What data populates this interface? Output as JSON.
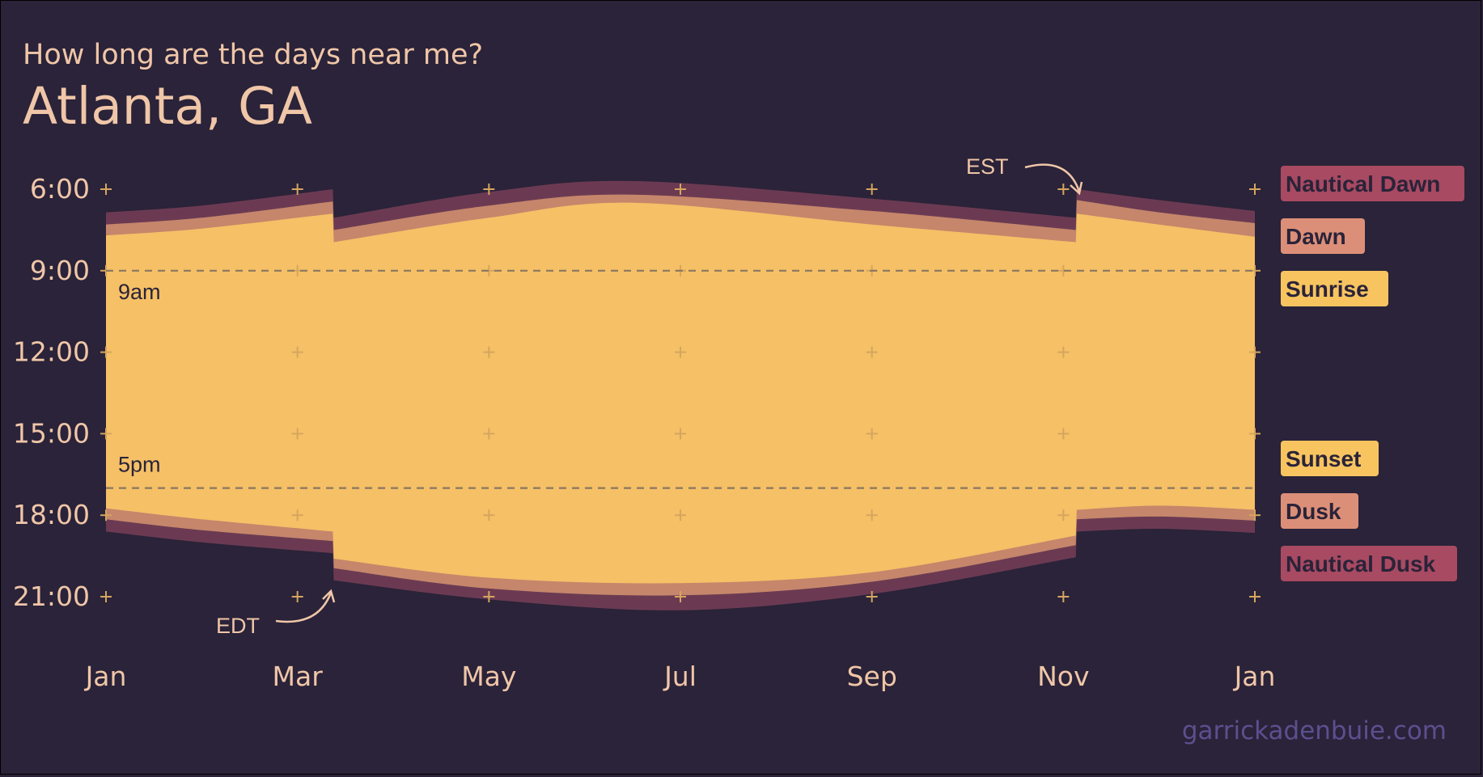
{
  "header": {
    "subtitle": "How long are the days near me?",
    "title": "Atlanta, GA"
  },
  "credit": "garrickadenbuie.com",
  "colors": {
    "background": "#2a2339",
    "nautical": "#6b3a52",
    "civil": "#c5866b",
    "day": "#f5c066",
    "text": "#f0c6a8",
    "credit": "#5c4f8f",
    "legend_nautical": "#a84a62",
    "legend_civil": "#dc8f78",
    "legend_day": "#f7c460"
  },
  "chart_data": {
    "type": "area",
    "x_ticks": [
      {
        "label": "Jan",
        "month": 1
      },
      {
        "label": "Mar",
        "month": 3
      },
      {
        "label": "May",
        "month": 5
      },
      {
        "label": "Jul",
        "month": 7
      },
      {
        "label": "Sep",
        "month": 9
      },
      {
        "label": "Nov",
        "month": 11
      },
      {
        "label": "Jan",
        "month": 13
      }
    ],
    "y_ticks": [
      "6:00",
      "9:00",
      "12:00",
      "15:00",
      "18:00",
      "21:00"
    ],
    "y_tick_hours": [
      6,
      9,
      12,
      15,
      18,
      21
    ],
    "ylim": [
      6,
      21
    ],
    "y_reversed": true,
    "reference_lines": [
      {
        "hour": 9,
        "label": "9am"
      },
      {
        "hour": 17,
        "label": "5pm"
      }
    ],
    "annotations": [
      {
        "label": "EST",
        "month": 11.1
      },
      {
        "label": "EDT",
        "month": 3.4
      }
    ],
    "dst_start_month": 3.37,
    "dst_end_month": 11.13,
    "series": [
      {
        "name": "Nautical Dawn",
        "month": [
          1,
          2,
          3.37,
          3.38,
          5,
          6.5,
          9,
          11.13,
          11.14,
          12,
          13
        ],
        "hour": [
          6.85,
          6.6,
          6.0,
          7.05,
          6.1,
          5.7,
          6.35,
          7.05,
          6.0,
          6.4,
          6.8
        ]
      },
      {
        "name": "Dawn",
        "month": [
          1,
          2,
          3.37,
          3.38,
          5,
          6.5,
          9,
          11.13,
          11.14,
          12,
          13
        ],
        "hour": [
          7.3,
          7.05,
          6.45,
          7.5,
          6.6,
          6.2,
          6.8,
          7.5,
          6.4,
          6.85,
          7.25
        ]
      },
      {
        "name": "Sunrise",
        "month": [
          1,
          2,
          3.37,
          3.38,
          5,
          6.5,
          9,
          11.13,
          11.14,
          12,
          13
        ],
        "hour": [
          7.7,
          7.45,
          6.9,
          7.95,
          7.05,
          6.5,
          7.3,
          7.95,
          6.9,
          7.3,
          7.75
        ]
      },
      {
        "name": "Sunset",
        "month": [
          1,
          2,
          3.37,
          3.38,
          5,
          7,
          9,
          11.13,
          11.14,
          12,
          13
        ],
        "hour": [
          17.75,
          18.15,
          18.6,
          19.6,
          20.3,
          20.5,
          20.1,
          18.75,
          17.8,
          17.65,
          17.8
        ]
      },
      {
        "name": "Dusk",
        "month": [
          1,
          2,
          3.37,
          3.38,
          5,
          7,
          9,
          11.13,
          11.14,
          12,
          13
        ],
        "hour": [
          18.15,
          18.55,
          18.95,
          19.95,
          20.7,
          20.95,
          20.45,
          19.1,
          18.15,
          18.05,
          18.2
        ]
      },
      {
        "name": "Nautical Dusk",
        "month": [
          1,
          2,
          3.37,
          3.38,
          5,
          7,
          9,
          11.13,
          11.14,
          12,
          13
        ],
        "hour": [
          18.6,
          19.0,
          19.4,
          20.4,
          21.1,
          21.5,
          20.9,
          19.55,
          18.6,
          18.5,
          18.65
        ]
      }
    ],
    "legend": [
      {
        "label": "Nautical Dawn",
        "color": "#a84a62"
      },
      {
        "label": "Dawn",
        "color": "#dc8f78"
      },
      {
        "label": "Sunrise",
        "color": "#f7c460"
      },
      {
        "label": "Sunset",
        "color": "#f7c460"
      },
      {
        "label": "Dusk",
        "color": "#dc8f78"
      },
      {
        "label": "Nautical Dusk",
        "color": "#a84a62"
      }
    ],
    "legend_placement": "right"
  }
}
